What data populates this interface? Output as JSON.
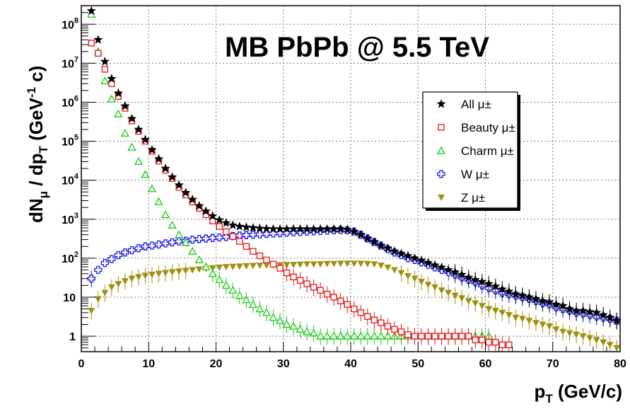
{
  "chart_data": {
    "type": "scatter",
    "title": "MB PbPb @ 5.5 TeV",
    "xlabel": {
      "main": "p",
      "sub": "T",
      "rest": " (GeV/c)"
    },
    "ylabel": {
      "p1": "dN",
      "s1": "μ",
      "p2": " / dp",
      "s2": "T",
      "p3": "  (GeV",
      "sup": "-1",
      "p4": " c)"
    },
    "xlim": [
      0,
      80
    ],
    "ylim": [
      0.4,
      300000000
    ],
    "yscale": "log",
    "grid": true,
    "legend_position": "right",
    "x_ticks": [
      "0",
      "10",
      "20",
      "30",
      "40",
      "50",
      "60",
      "70",
      "80"
    ],
    "y_ticks": [
      {
        "value": 1,
        "base": "1",
        "exp": ""
      },
      {
        "value": 10,
        "base": "10",
        "exp": ""
      },
      {
        "value": 100,
        "base": "10",
        "exp": "2"
      },
      {
        "value": 1000,
        "base": "10",
        "exp": "3"
      },
      {
        "value": 10000,
        "base": "10",
        "exp": "4"
      },
      {
        "value": 100000,
        "base": "10",
        "exp": "5"
      },
      {
        "value": 1000000,
        "base": "10",
        "exp": "6"
      },
      {
        "value": 10000000,
        "base": "10",
        "exp": "7"
      },
      {
        "value": 100000000,
        "base": "10",
        "exp": "8"
      }
    ],
    "series": [
      {
        "name": "All μ±",
        "marker": "star",
        "color": "#000000",
        "x": [
          1.5,
          2.5,
          3.5,
          4.5,
          5.5,
          6.5,
          7.5,
          8.5,
          9.5,
          10.5,
          11.5,
          12.5,
          13.5,
          14.5,
          15.5,
          16.5,
          17.5,
          18.5,
          19.5,
          20.5,
          21.5,
          22.5,
          23.5,
          24.5,
          25.5,
          26.5,
          27.5,
          28.5,
          29.5,
          30.5,
          31.5,
          32.5,
          33.5,
          34.5,
          35.5,
          36.5,
          37.5,
          38.5,
          39.5,
          40.5,
          41.5,
          42.5,
          43.5,
          44.5,
          45.5,
          46.5,
          47.5,
          48.5,
          49.5,
          50.5,
          51.5,
          52.5,
          53.5,
          54.5,
          55.5,
          56.5,
          57.5,
          58.5,
          59.5,
          60.5,
          61.5,
          62.5,
          63.5,
          64.5,
          65.5,
          66.5,
          67.5,
          68.5,
          69.5,
          70.5,
          71.5,
          72.5,
          73.5,
          74.5,
          75.5,
          76.5,
          77.5,
          78.5,
          79.5
        ],
        "y": [
          220000000,
          40000000,
          11000000,
          4000000,
          1700000,
          800000,
          380000,
          200000,
          110000,
          60000,
          35000,
          20000,
          12000,
          7500,
          4800,
          3200,
          2200,
          1600,
          1200,
          950,
          800,
          700,
          650,
          620,
          600,
          580,
          570,
          560,
          560,
          560,
          560,
          560,
          560,
          560,
          560,
          560,
          560,
          560,
          540,
          480,
          400,
          320,
          260,
          210,
          180,
          150,
          130,
          115,
          100,
          88,
          76,
          66,
          58,
          50,
          44,
          38,
          32,
          28,
          25,
          22,
          19,
          16,
          14,
          12,
          11,
          10,
          9,
          8,
          7.5,
          6.5,
          6,
          5,
          4.5,
          4.5,
          4.2,
          4,
          3.5,
          3,
          2.5
        ]
      },
      {
        "name": "Beauty μ±",
        "marker": "open-square",
        "color": "#ee1111",
        "x": [
          1.5,
          2.5,
          3.5,
          4.5,
          5.5,
          6.5,
          7.5,
          8.5,
          9.5,
          10.5,
          11.5,
          12.5,
          13.5,
          14.5,
          15.5,
          16.5,
          17.5,
          18.5,
          19.5,
          20.5,
          21.5,
          22.5,
          23.5,
          24.5,
          25.5,
          26.5,
          27.5,
          28.5,
          29.5,
          30.5,
          31.5,
          32.5,
          33.5,
          34.5,
          35.5,
          36.5,
          37.5,
          38.5,
          39.5,
          40.5,
          41.5,
          42.5,
          43.5,
          44.5,
          45.5,
          46.5,
          47.5,
          48.5,
          49.5,
          50.5,
          51.5,
          52.5,
          53.5,
          54.5,
          55.5,
          56.5,
          57.5,
          58.5,
          59.5,
          60.5,
          61.5,
          62.5,
          63.5
        ],
        "y": [
          33000000,
          18000000,
          7000000,
          3000000,
          1400000,
          700000,
          330000,
          180000,
          100000,
          55000,
          31000,
          18000,
          11000,
          6600,
          4200,
          2800,
          1900,
          1300,
          900,
          650,
          480,
          360,
          270,
          200,
          150,
          115,
          90,
          70,
          55,
          42,
          33,
          27,
          22,
          18,
          15,
          12,
          10,
          8,
          6.5,
          5,
          4,
          3.2,
          2.6,
          2.2,
          1.8,
          1.5,
          1.3,
          1.1,
          1,
          1,
          1,
          1,
          1,
          1,
          1,
          1,
          1,
          0.8,
          0.8,
          0.7,
          0.7,
          0.6,
          0.6
        ]
      },
      {
        "name": "Charm μ±",
        "marker": "open-triangle",
        "color": "#11cc11",
        "x": [
          1.5,
          2.5,
          3.5,
          4.5,
          5.5,
          6.5,
          7.5,
          8.5,
          9.5,
          10.5,
          11.5,
          12.5,
          13.5,
          14.5,
          15.5,
          16.5,
          17.5,
          18.5,
          19.5,
          20.5,
          21.5,
          22.5,
          23.5,
          24.5,
          25.5,
          26.5,
          27.5,
          28.5,
          29.5,
          30.5,
          31.5,
          32.5,
          33.5,
          34.5,
          35.5,
          36.5,
          37.5,
          38.5,
          39.5,
          40.5,
          41.5,
          42.5,
          43.5,
          44.5,
          45.5,
          46.5,
          47.5,
          48.5,
          49.5,
          50.5,
          51.5,
          52.5,
          53.5,
          54.5,
          55.5,
          56.5,
          57.5,
          58.5,
          59.5,
          60.5
        ],
        "y": [
          180000000,
          20000000,
          3500000,
          1200000,
          500000,
          160000,
          70000,
          30000,
          14000,
          6000,
          2800,
          1300,
          700,
          400,
          250,
          150,
          90,
          60,
          40,
          28,
          20,
          15,
          11,
          8.5,
          6.5,
          5,
          4,
          3,
          2.5,
          2,
          1.8,
          1.5,
          1.3,
          1.2,
          1,
          1,
          1,
          1,
          1,
          1,
          1,
          1,
          1,
          1,
          1,
          1,
          1,
          1,
          1,
          1,
          1,
          1,
          1,
          1,
          1,
          1,
          1,
          1,
          1,
          1
        ]
      },
      {
        "name": "W μ±",
        "marker": "open-cross",
        "color": "#1111ee",
        "x": [
          1.5,
          2.5,
          3.5,
          4.5,
          5.5,
          6.5,
          7.5,
          8.5,
          9.5,
          10.5,
          11.5,
          12.5,
          13.5,
          14.5,
          15.5,
          16.5,
          17.5,
          18.5,
          19.5,
          20.5,
          21.5,
          22.5,
          23.5,
          24.5,
          25.5,
          26.5,
          27.5,
          28.5,
          29.5,
          30.5,
          31.5,
          32.5,
          33.5,
          34.5,
          35.5,
          36.5,
          37.5,
          38.5,
          39.5,
          40.5,
          41.5,
          42.5,
          43.5,
          44.5,
          45.5,
          46.5,
          47.5,
          48.5,
          49.5,
          50.5,
          51.5,
          52.5,
          53.5,
          54.5,
          55.5,
          56.5,
          57.5,
          58.5,
          59.5,
          60.5,
          61.5,
          62.5,
          63.5,
          64.5,
          65.5,
          66.5,
          67.5,
          68.5,
          69.5,
          70.5,
          71.5,
          72.5,
          73.5,
          74.5,
          75.5,
          76.5,
          77.5,
          78.5,
          79.5
        ],
        "y": [
          30,
          50,
          75,
          95,
          120,
          140,
          160,
          180,
          200,
          210,
          225,
          240,
          255,
          270,
          280,
          300,
          310,
          320,
          330,
          340,
          350,
          370,
          380,
          390,
          400,
          410,
          420,
          430,
          440,
          450,
          460,
          470,
          480,
          490,
          500,
          510,
          520,
          530,
          520,
          480,
          400,
          320,
          260,
          210,
          170,
          140,
          120,
          100,
          90,
          78,
          68,
          58,
          50,
          44,
          38,
          32,
          28,
          24,
          20,
          17,
          15,
          13,
          12,
          11,
          10,
          9,
          8,
          7,
          6.5,
          5.5,
          5,
          4.5,
          4,
          3.8,
          3.5,
          3.2,
          3,
          2.8,
          2.5
        ]
      },
      {
        "name": "Z μ±",
        "marker": "filled-triangle-down",
        "color": "#a09010",
        "x": [
          1.5,
          2.5,
          3.5,
          4.5,
          5.5,
          6.5,
          7.5,
          8.5,
          9.5,
          10.5,
          11.5,
          12.5,
          13.5,
          14.5,
          15.5,
          16.5,
          17.5,
          18.5,
          19.5,
          20.5,
          21.5,
          22.5,
          23.5,
          24.5,
          25.5,
          26.5,
          27.5,
          28.5,
          29.5,
          30.5,
          31.5,
          32.5,
          33.5,
          34.5,
          35.5,
          36.5,
          37.5,
          38.5,
          39.5,
          40.5,
          41.5,
          42.5,
          43.5,
          44.5,
          45.5,
          46.5,
          47.5,
          48.5,
          49.5,
          50.5,
          51.5,
          52.5,
          53.5,
          54.5,
          55.5,
          56.5,
          57.5,
          58.5,
          59.5,
          60.5,
          61.5,
          62.5,
          63.5,
          64.5,
          65.5,
          66.5,
          67.5,
          68.5,
          69.5,
          70.5,
          71.5,
          72.5,
          73.5,
          74.5,
          75.5,
          76.5,
          77.5,
          78.5,
          79.5
        ],
        "y": [
          4.5,
          9,
          13,
          18,
          22,
          26,
          30,
          33,
          36,
          38,
          40,
          42,
          44,
          46,
          48,
          50,
          52,
          54,
          56,
          58,
          60,
          61,
          62,
          63,
          64,
          65,
          66,
          66,
          67,
          68,
          68,
          69,
          70,
          70,
          71,
          72,
          72,
          73,
          73,
          73,
          73,
          72,
          70,
          65,
          58,
          50,
          42,
          35,
          30,
          25,
          21,
          18,
          15,
          13,
          11,
          9.5,
          8,
          7,
          6,
          5,
          4.5,
          4,
          3.5,
          3,
          2.8,
          2.5,
          2.2,
          2,
          1.8,
          1.5,
          1.3,
          1.2,
          1.1,
          1,
          0.9,
          0.8,
          0.7,
          0.6,
          0.5
        ]
      }
    ]
  }
}
